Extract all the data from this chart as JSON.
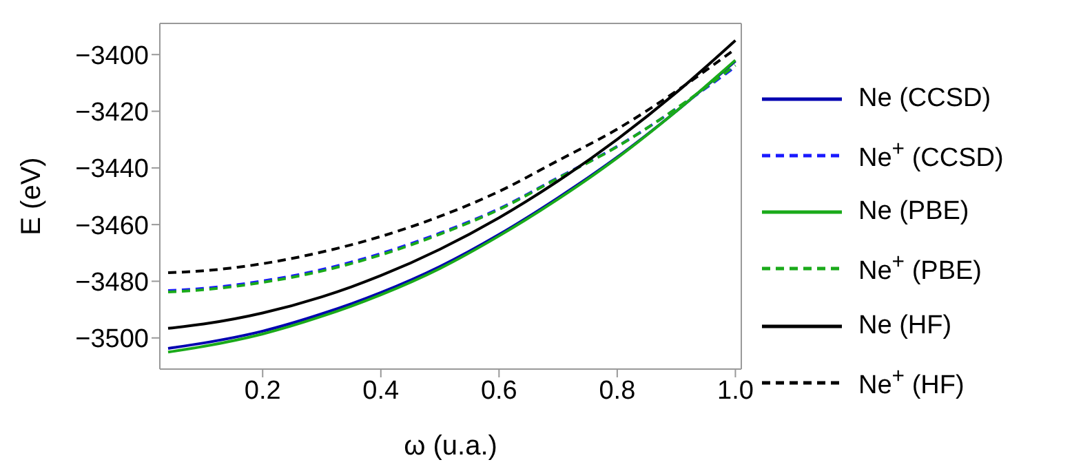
{
  "chart_data": {
    "type": "line",
    "xlabel": "ω (u.a.)",
    "ylabel": "E (eV)",
    "x": [
      0.04,
      0.1,
      0.2,
      0.3,
      0.4,
      0.5,
      0.6,
      0.7,
      0.8,
      0.9,
      1.0
    ],
    "xlim": [
      0.026,
      1.01
    ],
    "xticks": [
      {
        "value": 0.2,
        "label": "0.2"
      },
      {
        "value": 0.4,
        "label": "0.4"
      },
      {
        "value": 0.6,
        "label": "0.6"
      },
      {
        "value": 0.8,
        "label": "0.8"
      },
      {
        "value": 1,
        "label": "1.0"
      }
    ],
    "ylim": [
      -3511,
      -3389
    ],
    "yticks": [
      -3500,
      -3480,
      -3460,
      -3440,
      -3420,
      -3400
    ],
    "grid": false,
    "legend": "right",
    "marker": "none",
    "series": [
      {
        "name": "Ne (CCSD)",
        "color": "#0000b0",
        "line_style": "solid",
        "values": [
          -3503.7,
          -3501.8,
          -3497.6,
          -3491.5,
          -3484,
          -3474.8,
          -3463.5,
          -3450.5,
          -3436.2,
          -3420,
          -3402.3
        ]
      },
      {
        "name": "Ne$^{+}$ (CCSD)",
        "color": "#1a1aff",
        "line_style": "dashed",
        "values": [
          -3483.3,
          -3482.5,
          -3479.9,
          -3475.9,
          -3470.2,
          -3463,
          -3454.4,
          -3443.4,
          -3432.4,
          -3419.1,
          -3404.3
        ]
      },
      {
        "name": "Ne (PBE)",
        "color": "#1aaa1a",
        "line_style": "solid",
        "values": [
          -3505,
          -3503,
          -3498.6,
          -3492.4,
          -3484.8,
          -3475.5,
          -3464,
          -3451,
          -3436.5,
          -3420,
          -3402
        ]
      },
      {
        "name": "Ne$^{+}$ (PBE)",
        "color": "#1aaa1a",
        "line_style": "dashed",
        "values": [
          -3483.8,
          -3483,
          -3480.4,
          -3476.4,
          -3470.7,
          -3463.4,
          -3454.7,
          -3443.6,
          -3432.5,
          -3419,
          -3403.8
        ]
      },
      {
        "name": "Ne (HF)",
        "color": "#000000",
        "line_style": "solid",
        "values": [
          -3496.6,
          -3495.1,
          -3491.2,
          -3485.5,
          -3478,
          -3468.7,
          -3457.6,
          -3444.6,
          -3429.9,
          -3413.4,
          -3395
        ]
      },
      {
        "name": "Ne$^{+}$ (HF)",
        "color": "#000000",
        "line_style": "dashed",
        "values": [
          -3477,
          -3476.3,
          -3473.8,
          -3469.7,
          -3464.2,
          -3457.1,
          -3448.3,
          -3437.4,
          -3426.3,
          -3412.9,
          -3398
        ]
      }
    ]
  }
}
